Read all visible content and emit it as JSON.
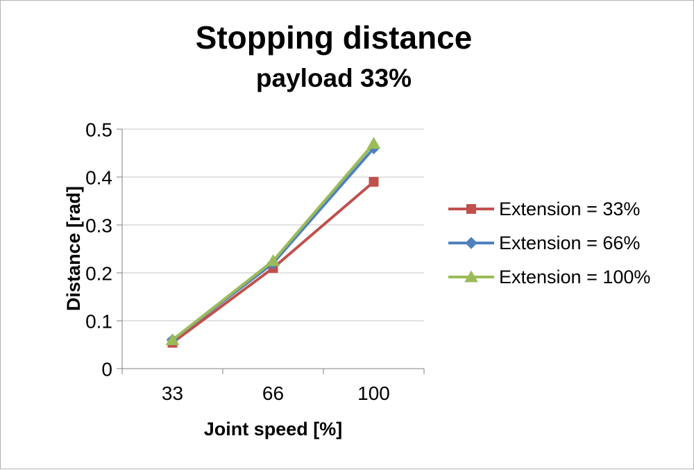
{
  "title": "Stopping distance",
  "subtitle": "payload 33%",
  "chart_data": {
    "type": "line",
    "categories": [
      "33",
      "66",
      "100"
    ],
    "series": [
      {
        "name": "Extension = 33%",
        "color": "#C0504D",
        "marker": "square",
        "values": [
          0.054,
          0.21,
          0.39
        ]
      },
      {
        "name": "Extension = 66%",
        "color": "#4F81BD",
        "marker": "diamond",
        "values": [
          0.06,
          0.22,
          0.46
        ]
      },
      {
        "name": "Extension = 100%",
        "color": "#9BBB59",
        "marker": "triangle",
        "values": [
          0.06,
          0.225,
          0.47
        ]
      }
    ],
    "xlabel": "Joint speed [%]",
    "ylabel": "Distance [rad]",
    "ylim": [
      0,
      0.5
    ],
    "yticks": [
      "0",
      "0.1",
      "0.2",
      "0.3",
      "0.4",
      "0.5"
    ],
    "grid": "horizontal",
    "legend_position": "right"
  },
  "colors": {
    "grid": "#C6C6C6",
    "axis": "#808080",
    "text": "#000000"
  }
}
